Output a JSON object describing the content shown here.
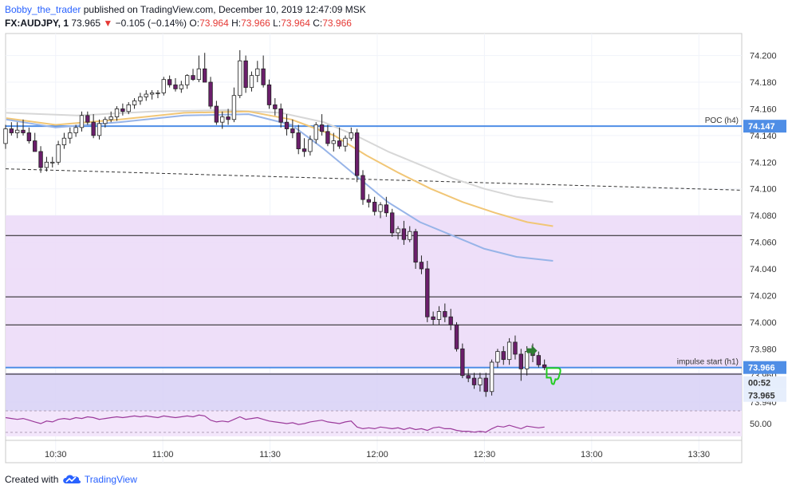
{
  "header": {
    "author": "Bobby_the_trader",
    "published_text": " published on TradingView.com, December 10, 2019 12:47:09 MSK",
    "symbol": "FX:AUDJPY, 1",
    "last": "73.965",
    "arrow": "▼",
    "change": "−0.105 (−0.14%)",
    "o_label": "O:",
    "o_val": "73.964",
    "h_label": "H:",
    "h_val": "73.966",
    "l_label": "L:",
    "l_val": "73.964",
    "c_label": "C:",
    "c_val": "73.966"
  },
  "footer": {
    "created_with": "Created with",
    "brand": "TradingView"
  },
  "colors": {
    "up": "#ffffff",
    "down": "#6b1e6b",
    "candle_border": "#222222",
    "zone_upper": "#ecdcf8",
    "zone_lower": "#d9d3f6",
    "rsi_band": "#f3e6fb",
    "poc_line": "#4f8ee6",
    "impulse_line": "#4f8ee6",
    "ma_gray": "#d7d7d7",
    "ma_orange": "#f1c676",
    "ma_blue": "#97b4e8",
    "rsi": "#9b3a9b",
    "price_tag": "#4f8ee6",
    "thumb": "#22cc22",
    "arrow_icon": "#2e7d32"
  },
  "chart_data": {
    "type": "candlestick",
    "y_axis": {
      "ticks": [
        "74.200",
        "74.180",
        "74.160",
        "74.140",
        "74.120",
        "74.100",
        "74.080",
        "74.060",
        "74.040",
        "74.020",
        "74.000",
        "73.980",
        "73.960",
        "73.940"
      ],
      "tick_values": [
        74.2,
        74.18,
        74.16,
        74.14,
        74.12,
        74.1,
        74.08,
        74.06,
        74.04,
        74.02,
        74.0,
        73.98,
        73.96,
        73.94
      ],
      "range": [
        73.9365,
        74.2165
      ]
    },
    "x_axis": {
      "ticks": [
        "10:30",
        "11:00",
        "11:30",
        "12:00",
        "12:30",
        "13:00",
        "13:30"
      ],
      "start_time": "10:16",
      "end_time": "13:42"
    },
    "price_tags": {
      "poc": "74.147",
      "impulse": "73.966",
      "countdown": "00:52",
      "last": "73.965"
    },
    "levels": [
      {
        "name": "POC (h4)",
        "value": 74.147
      },
      {
        "name": "impulse start (h1)",
        "value": 73.966
      }
    ],
    "horizontal_lines": [
      74.065,
      74.019,
      73.998,
      73.961,
      73.933
    ],
    "zones": [
      {
        "from": 73.966,
        "to": 74.08
      },
      {
        "from": 73.925,
        "to": 73.962
      }
    ],
    "trendline": {
      "start": [
        "10:16",
        74.115
      ],
      "end": [
        "13:42",
        74.099
      ]
    },
    "candles_ohlc": [
      [
        74.134,
        74.148,
        74.13,
        74.145
      ],
      [
        74.145,
        74.15,
        74.14,
        74.142
      ],
      [
        74.142,
        74.15,
        74.138,
        74.144
      ],
      [
        74.144,
        74.152,
        74.14,
        74.142
      ],
      [
        74.142,
        74.146,
        74.134,
        74.136
      ],
      [
        74.136,
        74.142,
        74.128,
        74.128
      ],
      [
        74.128,
        74.132,
        74.112,
        74.116
      ],
      [
        74.116,
        74.124,
        74.113,
        74.12
      ],
      [
        74.12,
        74.124,
        74.116,
        74.12
      ],
      [
        74.12,
        74.136,
        74.118,
        74.133
      ],
      [
        74.133,
        74.142,
        74.13,
        74.138
      ],
      [
        74.138,
        74.146,
        74.134,
        74.142
      ],
      [
        74.142,
        74.148,
        74.139,
        74.146
      ],
      [
        74.146,
        74.158,
        74.143,
        74.155
      ],
      [
        74.155,
        74.158,
        74.148,
        74.15
      ],
      [
        74.15,
        74.156,
        74.138,
        74.14
      ],
      [
        74.14,
        74.152,
        74.137,
        74.149
      ],
      [
        74.149,
        74.154,
        74.146,
        74.152
      ],
      [
        74.152,
        74.158,
        74.15,
        74.154
      ],
      [
        74.154,
        74.162,
        74.151,
        74.16
      ],
      [
        74.16,
        74.164,
        74.155,
        74.158
      ],
      [
        74.158,
        74.165,
        74.156,
        74.163
      ],
      [
        74.163,
        74.168,
        74.16,
        74.166
      ],
      [
        74.166,
        74.172,
        74.163,
        74.169
      ],
      [
        74.169,
        74.174,
        74.166,
        74.171
      ],
      [
        74.171,
        74.174,
        74.167,
        74.172
      ],
      [
        74.172,
        74.174,
        74.168,
        74.172
      ],
      [
        74.172,
        74.184,
        74.17,
        74.182
      ],
      [
        74.182,
        74.185,
        74.176,
        74.178
      ],
      [
        74.178,
        74.183,
        74.173,
        74.175
      ],
      [
        74.175,
        74.181,
        74.172,
        74.178
      ],
      [
        74.178,
        74.186,
        74.175,
        74.185
      ],
      [
        74.185,
        74.19,
        74.181,
        74.182
      ],
      [
        74.182,
        74.2,
        74.18,
        74.19
      ],
      [
        74.19,
        74.202,
        74.186,
        74.18
      ],
      [
        74.18,
        74.184,
        74.16,
        74.162
      ],
      [
        74.162,
        74.166,
        74.148,
        74.15
      ],
      [
        74.15,
        74.158,
        74.145,
        74.154
      ],
      [
        74.154,
        74.16,
        74.148,
        74.152
      ],
      [
        74.152,
        74.176,
        74.15,
        74.17
      ],
      [
        74.17,
        74.204,
        74.168,
        74.196
      ],
      [
        74.196,
        74.2,
        74.172,
        74.176
      ],
      [
        74.176,
        74.188,
        74.173,
        74.185
      ],
      [
        74.185,
        74.196,
        74.18,
        74.19
      ],
      [
        74.19,
        74.2,
        74.176,
        74.178
      ],
      [
        74.178,
        74.182,
        74.16,
        74.163
      ],
      [
        74.163,
        74.168,
        74.155,
        74.16
      ],
      [
        74.16,
        74.164,
        74.146,
        74.15
      ],
      [
        74.15,
        74.156,
        74.14,
        74.145
      ],
      [
        74.145,
        74.152,
        74.138,
        74.142
      ],
      [
        74.142,
        74.148,
        74.126,
        74.13
      ],
      [
        74.13,
        74.138,
        74.124,
        74.128
      ],
      [
        74.128,
        74.14,
        74.125,
        74.137
      ],
      [
        74.137,
        74.15,
        74.134,
        74.148
      ],
      [
        74.148,
        74.156,
        74.14,
        74.143
      ],
      [
        74.143,
        74.148,
        74.132,
        74.134
      ],
      [
        74.134,
        74.142,
        74.128,
        74.136
      ],
      [
        74.136,
        74.146,
        74.13,
        74.132
      ],
      [
        74.132,
        74.14,
        74.128,
        74.138
      ],
      [
        74.138,
        74.146,
        74.136,
        74.142
      ],
      [
        74.142,
        74.145,
        74.105,
        74.11
      ],
      [
        74.11,
        74.114,
        74.088,
        74.092
      ],
      [
        74.092,
        74.096,
        74.086,
        74.09
      ],
      [
        74.09,
        74.094,
        74.08,
        74.083
      ],
      [
        74.083,
        74.09,
        74.078,
        74.088
      ],
      [
        74.088,
        74.094,
        74.079,
        74.082
      ],
      [
        74.082,
        74.085,
        74.064,
        74.067
      ],
      [
        74.067,
        74.072,
        74.062,
        74.07
      ],
      [
        74.07,
        74.076,
        74.058,
        74.062
      ],
      [
        74.062,
        74.072,
        74.06,
        74.068
      ],
      [
        74.068,
        74.07,
        74.04,
        74.045
      ],
      [
        74.045,
        74.05,
        74.036,
        74.04
      ],
      [
        74.04,
        74.046,
        74.0,
        74.004
      ],
      [
        74.004,
        74.008,
        73.998,
        74.002
      ],
      [
        74.002,
        74.012,
        73.998,
        74.008
      ],
      [
        74.008,
        74.014,
        74.0,
        74.004
      ],
      [
        74.004,
        74.01,
        73.994,
        73.998
      ],
      [
        73.998,
        74.0,
        73.978,
        73.98
      ],
      [
        73.98,
        73.984,
        73.958,
        73.96
      ],
      [
        73.96,
        73.965,
        73.955,
        73.958
      ],
      [
        73.958,
        73.962,
        73.95,
        73.953
      ],
      [
        73.953,
        73.962,
        73.948,
        73.958
      ],
      [
        73.958,
        73.962,
        73.944,
        73.948
      ],
      [
        73.948,
        73.972,
        73.945,
        73.97
      ],
      [
        73.97,
        73.98,
        73.966,
        73.978
      ],
      [
        73.978,
        73.982,
        73.968,
        73.972
      ],
      [
        73.972,
        73.988,
        73.968,
        73.985
      ],
      [
        73.985,
        73.99,
        73.972,
        73.976
      ],
      [
        73.976,
        73.98,
        73.956,
        73.965
      ],
      [
        73.965,
        73.982,
        73.96,
        73.978
      ],
      [
        73.978,
        73.984,
        73.97,
        73.975
      ],
      [
        73.975,
        73.978,
        73.966,
        73.968
      ],
      [
        73.968,
        73.972,
        73.964,
        73.966
      ]
    ],
    "ma_gray": [
      [
        10.27,
        74.157
      ],
      [
        10.6,
        74.155
      ],
      [
        10.95,
        74.158
      ],
      [
        11.3,
        74.159
      ],
      [
        11.55,
        74.157
      ],
      [
        11.75,
        74.15
      ],
      [
        11.9,
        74.14
      ],
      [
        12.05,
        74.128
      ],
      [
        12.2,
        74.118
      ],
      [
        12.35,
        74.108
      ],
      [
        12.5,
        74.1
      ],
      [
        12.65,
        74.094
      ],
      [
        12.82,
        74.09
      ]
    ],
    "ma_orange": [
      [
        10.27,
        74.153
      ],
      [
        10.5,
        74.148
      ],
      [
        10.8,
        74.152
      ],
      [
        11.1,
        74.157
      ],
      [
        11.4,
        74.158
      ],
      [
        11.6,
        74.152
      ],
      [
        11.8,
        74.14
      ],
      [
        11.95,
        74.125
      ],
      [
        12.1,
        74.112
      ],
      [
        12.25,
        74.1
      ],
      [
        12.4,
        74.09
      ],
      [
        12.55,
        74.082
      ],
      [
        12.7,
        74.075
      ],
      [
        12.82,
        74.072
      ]
    ],
    "ma_blue": [
      [
        10.27,
        74.152
      ],
      [
        10.5,
        74.146
      ],
      [
        10.8,
        74.15
      ],
      [
        11.1,
        74.155
      ],
      [
        11.4,
        74.156
      ],
      [
        11.6,
        74.148
      ],
      [
        11.75,
        74.13
      ],
      [
        11.9,
        74.11
      ],
      [
        12.05,
        74.09
      ],
      [
        12.2,
        74.075
      ],
      [
        12.35,
        74.065
      ],
      [
        12.5,
        74.055
      ],
      [
        12.65,
        74.049
      ],
      [
        12.82,
        74.046
      ]
    ],
    "rsi": {
      "ticks": [
        "50.00"
      ],
      "values": [
        57,
        56,
        55,
        56,
        54,
        52,
        50,
        53,
        52,
        55,
        56,
        55,
        57,
        56,
        58,
        57,
        55,
        56,
        57,
        58,
        57,
        58,
        59,
        58,
        59,
        58,
        57,
        59,
        58,
        57,
        58,
        59,
        58,
        60,
        59,
        54,
        52,
        53,
        52,
        55,
        58,
        55,
        56,
        57,
        55,
        53,
        52,
        51,
        50,
        51,
        49,
        50,
        52,
        53,
        54,
        52,
        51,
        50,
        52,
        53,
        46,
        44,
        45,
        44,
        46,
        45,
        44,
        45,
        43,
        45,
        43,
        44,
        42,
        45,
        46,
        44,
        44,
        42,
        41,
        41,
        40,
        41,
        40,
        44,
        47,
        46,
        48,
        46,
        44,
        47,
        46,
        45,
        46
      ]
    }
  }
}
